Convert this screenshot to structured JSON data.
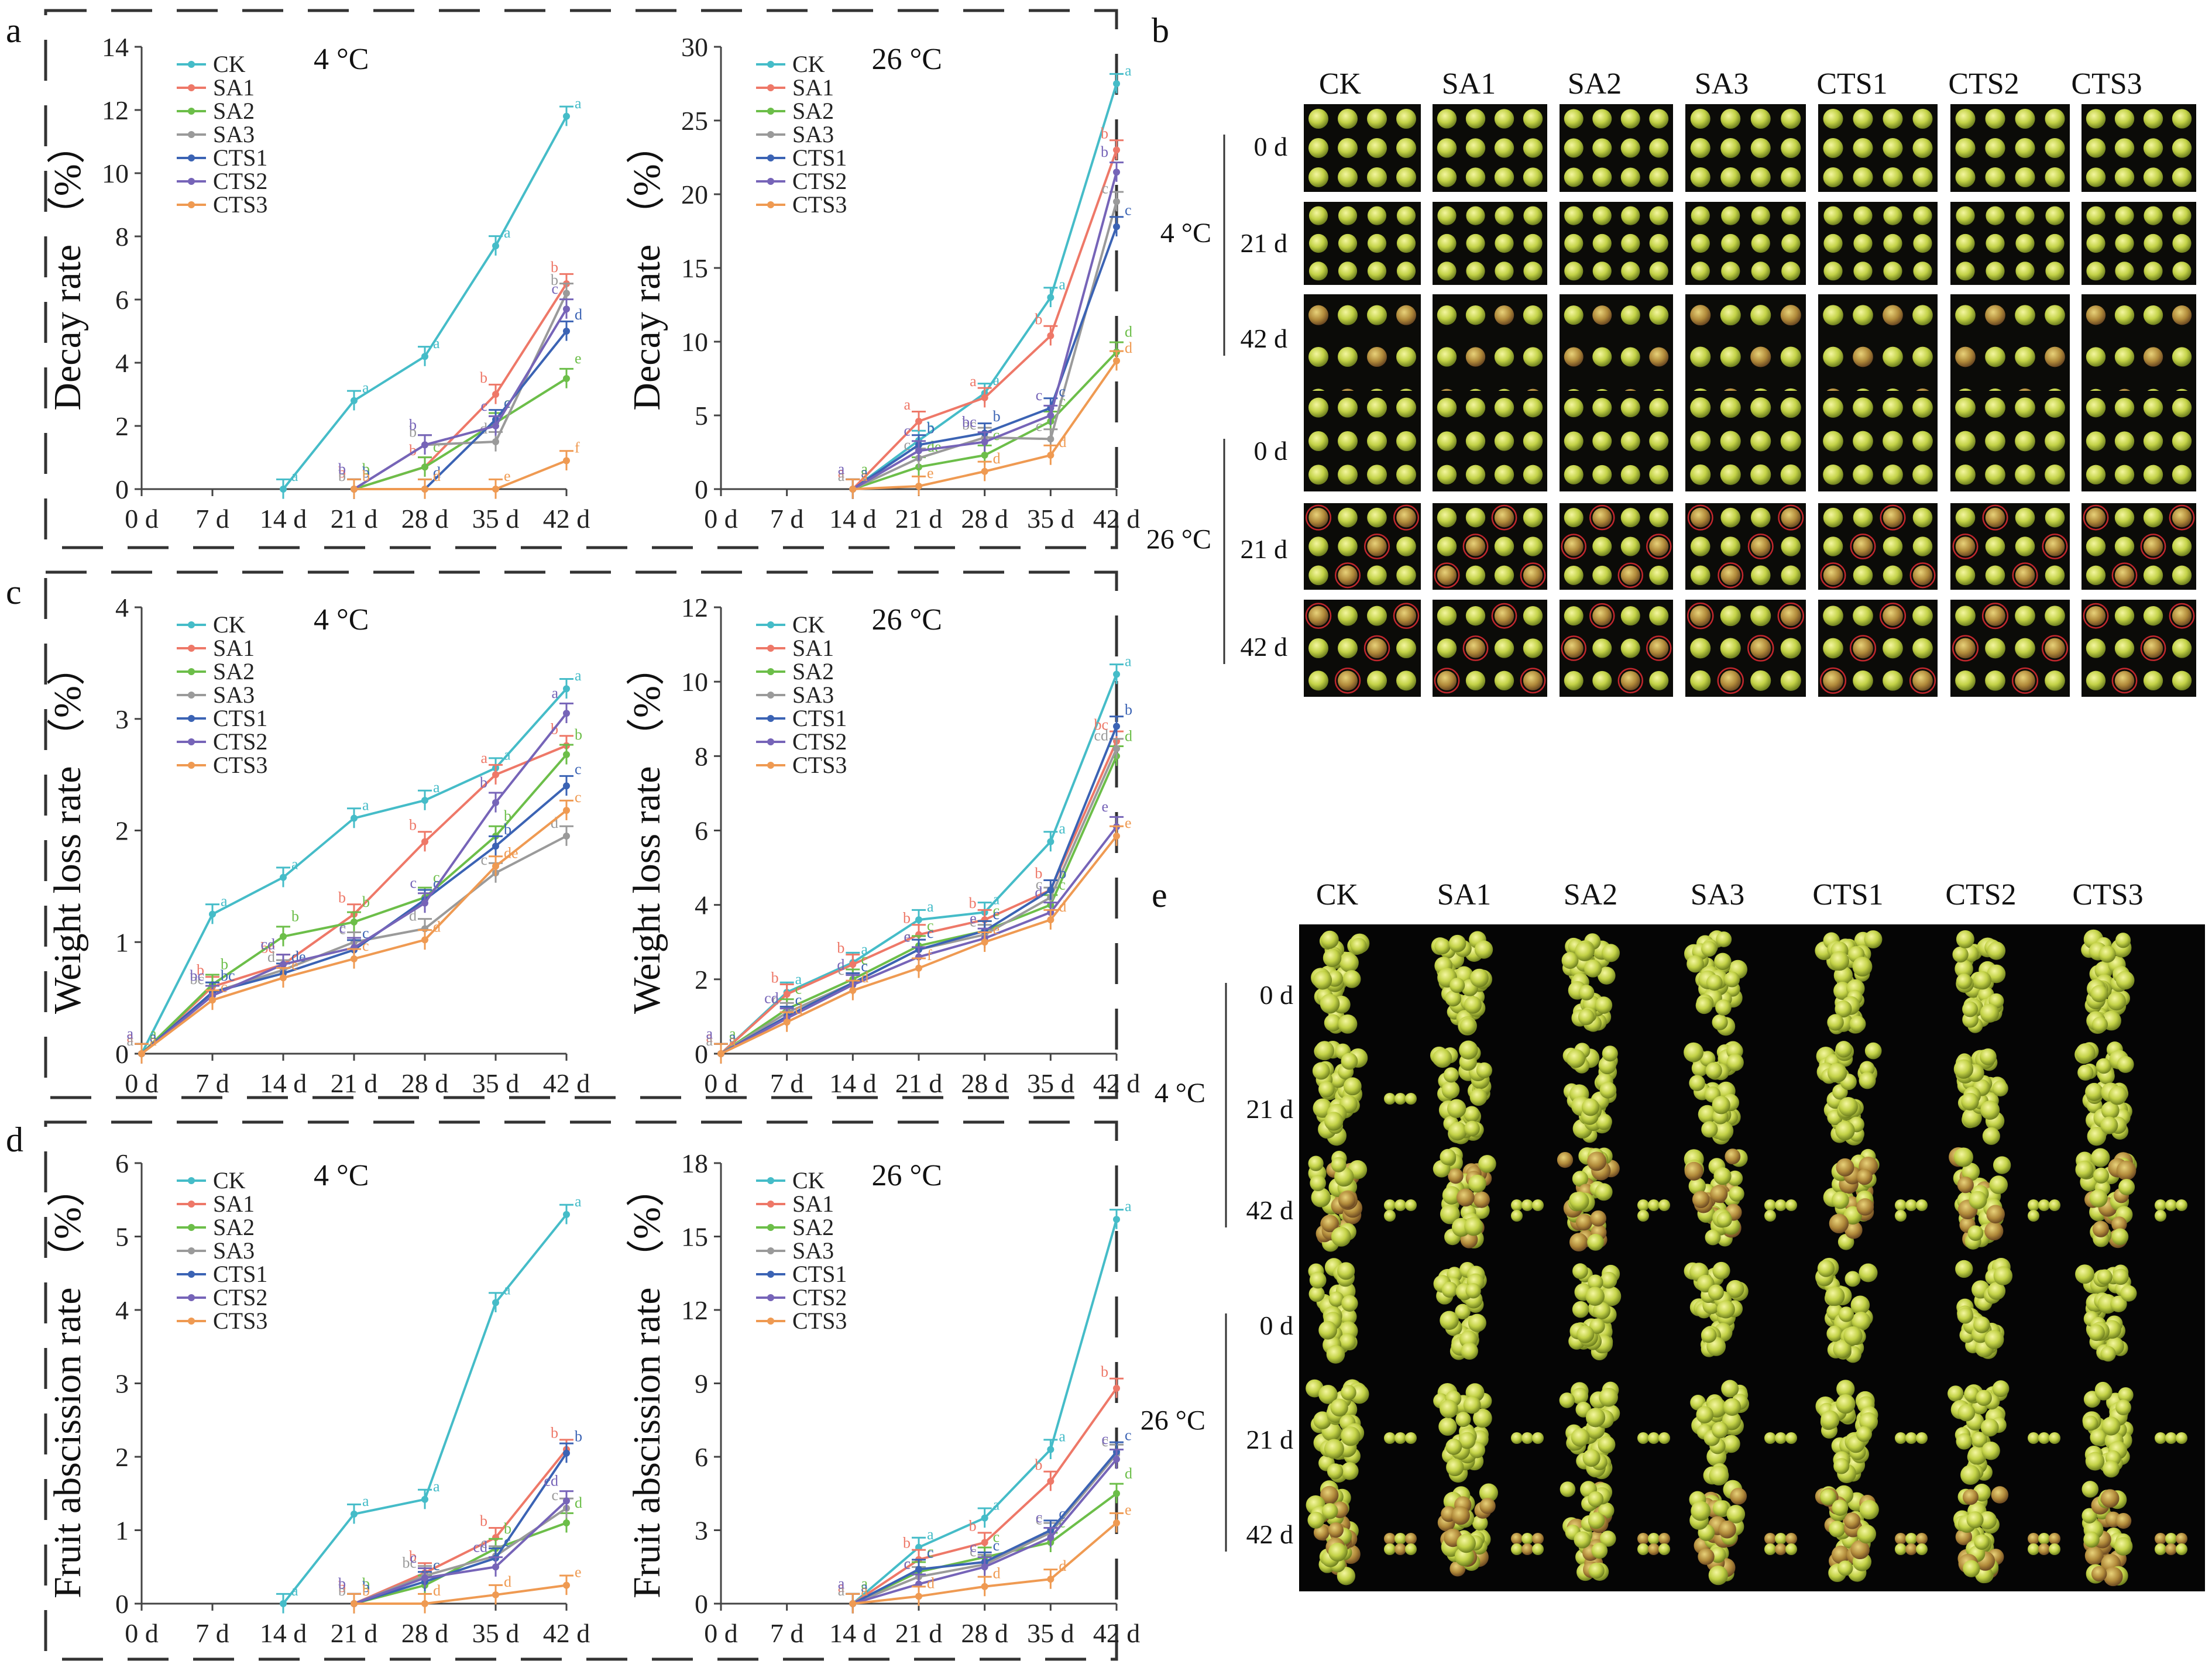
{
  "series_colors": {
    "CK": "#45bcc8",
    "SA1": "#ee7868",
    "SA2": "#6cbe49",
    "SA3": "#9a9a9a",
    "CTS1": "#3b63b4",
    "CTS2": "#7664b8",
    "CTS3": "#ef9a52"
  },
  "panel_letters": {
    "a": "a",
    "b": "b",
    "c": "c",
    "d": "d",
    "e": "e"
  },
  "chart_data": [
    {
      "id": "a-4C",
      "panel": "a",
      "type": "line",
      "title": "4 °C",
      "ylabel": "Decay rate （%）",
      "ylim": [
        0,
        14
      ],
      "yticks": [
        0,
        2,
        4,
        6,
        8,
        10,
        12,
        14
      ],
      "categories": [
        "0 d",
        "7 d",
        "14 d",
        "21 d",
        "28 d",
        "35 d",
        "42 d"
      ],
      "series": [
        {
          "name": "CK",
          "values": [
            null,
            null,
            0,
            2.8,
            4.2,
            7.7,
            11.8
          ],
          "sig": [
            "",
            "",
            "a",
            "a",
            "a",
            "a",
            "a"
          ]
        },
        {
          "name": "SA1",
          "values": [
            null,
            null,
            null,
            0,
            0.7,
            3.0,
            6.5
          ],
          "sig": [
            "",
            "",
            "",
            "b",
            "b",
            "b",
            "b"
          ]
        },
        {
          "name": "SA2",
          "values": [
            null,
            null,
            null,
            0,
            0.7,
            2.1,
            3.5
          ],
          "sig": [
            "",
            "",
            "",
            "b",
            "c",
            "c",
            "e"
          ]
        },
        {
          "name": "SA3",
          "values": [
            null,
            null,
            null,
            0,
            1.4,
            1.5,
            6.2
          ],
          "sig": [
            "",
            "",
            "",
            "b",
            "b",
            "d",
            "b"
          ]
        },
        {
          "name": "CTS1",
          "values": [
            null,
            null,
            null,
            0,
            0,
            2.2,
            5.0
          ],
          "sig": [
            "",
            "",
            "",
            "b",
            "d",
            "c",
            "d"
          ]
        },
        {
          "name": "CTS2",
          "values": [
            null,
            null,
            null,
            0,
            1.4,
            2.0,
            5.7
          ],
          "sig": [
            "",
            "",
            "",
            "b",
            "b",
            "c",
            "c"
          ]
        },
        {
          "name": "CTS3",
          "values": [
            null,
            null,
            null,
            0,
            0,
            0,
            0.9
          ],
          "sig": [
            "",
            "",
            "",
            "b",
            "d",
            "e",
            "f"
          ]
        }
      ]
    },
    {
      "id": "a-26C",
      "panel": "a",
      "type": "line",
      "title": "26 °C",
      "ylabel": "Decay rate （%）",
      "ylim": [
        0,
        30
      ],
      "yticks": [
        0,
        5,
        10,
        15,
        20,
        25,
        30
      ],
      "categories": [
        "0 d",
        "7 d",
        "14 d",
        "21 d",
        "28 d",
        "35 d",
        "42 d"
      ],
      "series": [
        {
          "name": "CK",
          "values": [
            null,
            null,
            0,
            3.3,
            6.5,
            13.0,
            27.5
          ],
          "sig": [
            "",
            "",
            "a",
            "b",
            "a",
            "a",
            "a"
          ]
        },
        {
          "name": "SA1",
          "values": [
            null,
            null,
            0,
            4.6,
            6.2,
            10.4,
            23.0
          ],
          "sig": [
            "",
            "",
            "a",
            "a",
            "a",
            "b",
            "b"
          ]
        },
        {
          "name": "SA2",
          "values": [
            null,
            null,
            0,
            1.5,
            2.3,
            4.6,
            9.3
          ],
          "sig": [
            "",
            "",
            "a",
            "de",
            "c",
            "c",
            "d"
          ]
        },
        {
          "name": "SA3",
          "values": [
            null,
            null,
            0,
            2.1,
            3.5,
            3.4,
            19.5
          ],
          "sig": [
            "",
            "",
            "a",
            "c",
            "bc",
            "c",
            "c"
          ]
        },
        {
          "name": "CTS1",
          "values": [
            null,
            null,
            0,
            3.0,
            3.8,
            5.5,
            17.8
          ],
          "sig": [
            "",
            "",
            "a",
            "b",
            "b",
            "c",
            "c"
          ]
        },
        {
          "name": "CTS2",
          "values": [
            null,
            null,
            0,
            2.6,
            3.2,
            5.0,
            21.5
          ],
          "sig": [
            "",
            "",
            "a",
            "c",
            "bc",
            "c",
            "b"
          ]
        },
        {
          "name": "CTS3",
          "values": [
            null,
            null,
            0,
            0.2,
            1.2,
            2.3,
            8.7
          ],
          "sig": [
            "",
            "",
            "a",
            "e",
            "d",
            "d",
            "d"
          ]
        }
      ]
    },
    {
      "id": "c-4C",
      "panel": "c",
      "type": "line",
      "title": "4 °C",
      "ylabel": "Weight loss rate （%）",
      "ylim": [
        0,
        4
      ],
      "yticks": [
        0,
        1,
        2,
        3,
        4
      ],
      "categories": [
        "0 d",
        "7 d",
        "14 d",
        "21 d",
        "28 d",
        "35 d",
        "42 d"
      ],
      "series": [
        {
          "name": "CK",
          "values": [
            0,
            1.25,
            1.58,
            2.11,
            2.27,
            2.56,
            3.27
          ],
          "sig": [
            "a",
            "a",
            "a",
            "a",
            "a",
            "a",
            "a"
          ]
        },
        {
          "name": "SA1",
          "values": [
            0,
            0.6,
            0.8,
            1.25,
            1.9,
            2.5,
            2.76
          ],
          "sig": [
            "a",
            "b",
            "bc",
            "b",
            "b",
            "a",
            "b"
          ]
        },
        {
          "name": "SA2",
          "values": [
            0,
            0.62,
            1.05,
            1.18,
            1.4,
            1.95,
            2.68
          ],
          "sig": [
            "a",
            "b",
            "b",
            "b",
            "c",
            "b",
            "b"
          ]
        },
        {
          "name": "SA3",
          "values": [
            0,
            0.55,
            0.75,
            1.0,
            1.12,
            1.62,
            1.95
          ],
          "sig": [
            "a",
            "bc",
            "d",
            "c",
            "d",
            "c",
            "d"
          ]
        },
        {
          "name": "CTS1",
          "values": [
            0,
            0.55,
            0.72,
            0.93,
            1.38,
            1.86,
            2.4
          ],
          "sig": [
            "a",
            "bc",
            "de",
            "c",
            "c",
            "b",
            "c"
          ]
        },
        {
          "name": "CTS2",
          "values": [
            0,
            0.52,
            0.8,
            0.95,
            1.35,
            2.25,
            3.05
          ],
          "sig": [
            "a",
            "bc",
            "cd",
            "c",
            "c",
            "b",
            "a"
          ]
        },
        {
          "name": "CTS3",
          "values": [
            0,
            0.48,
            0.68,
            0.85,
            1.02,
            1.68,
            2.18
          ],
          "sig": [
            "a",
            "c",
            "e",
            "c",
            "d",
            "de",
            "c"
          ]
        }
      ]
    },
    {
      "id": "c-26C",
      "panel": "c",
      "type": "line",
      "title": "26 °C",
      "ylabel": "Weight loss rate （%）",
      "ylim": [
        0,
        12
      ],
      "yticks": [
        0,
        2,
        4,
        6,
        8,
        10,
        12
      ],
      "categories": [
        "0 d",
        "7 d",
        "14 d",
        "21 d",
        "28 d",
        "35 d",
        "42 d"
      ],
      "series": [
        {
          "name": "CK",
          "values": [
            0,
            1.65,
            2.45,
            3.6,
            3.8,
            5.7,
            10.2
          ],
          "sig": [
            "a",
            "a",
            "a",
            "a",
            "a",
            "a",
            "a"
          ]
        },
        {
          "name": "SA1",
          "values": [
            0,
            1.6,
            2.4,
            3.2,
            3.6,
            4.4,
            8.4
          ],
          "sig": [
            "a",
            "b",
            "b",
            "b",
            "b",
            "b",
            "bc"
          ]
        },
        {
          "name": "SA2",
          "values": [
            0,
            1.2,
            2.0,
            2.9,
            3.3,
            4.0,
            8.0
          ],
          "sig": [
            "a",
            "c",
            "c",
            "c",
            "c",
            "c",
            "d"
          ]
        },
        {
          "name": "SA3",
          "values": [
            0,
            1.1,
            1.9,
            2.8,
            3.2,
            4.2,
            8.2
          ],
          "sig": [
            "a",
            "c",
            "c",
            "c",
            "c",
            "c",
            "cd"
          ]
        },
        {
          "name": "CTS1",
          "values": [
            0,
            1.0,
            1.9,
            2.8,
            3.3,
            4.4,
            8.8
          ],
          "sig": [
            "a",
            "c",
            "c",
            "c",
            "c",
            "b",
            "b"
          ]
        },
        {
          "name": "CTS2",
          "values": [
            0,
            0.95,
            1.85,
            2.6,
            3.1,
            3.8,
            6.1
          ],
          "sig": [
            "a",
            "cd",
            "d",
            "e",
            "e",
            "d",
            "e"
          ]
        },
        {
          "name": "CTS3",
          "values": [
            0,
            0.85,
            1.7,
            2.3,
            3.0,
            3.6,
            5.85
          ],
          "sig": [
            "a",
            "d",
            "d",
            "f",
            "e",
            "d",
            "e"
          ]
        }
      ]
    },
    {
      "id": "d-4C",
      "panel": "d",
      "type": "line",
      "title": "4 °C",
      "ylabel": "Fruit abscission rate （%）",
      "ylim": [
        0,
        6
      ],
      "yticks": [
        0,
        1,
        2,
        3,
        4,
        5,
        6
      ],
      "categories": [
        "0 d",
        "7 d",
        "14 d",
        "21 d",
        "28 d",
        "35 d",
        "42 d"
      ],
      "series": [
        {
          "name": "CK",
          "values": [
            null,
            null,
            0,
            1.22,
            1.42,
            4.1,
            5.3
          ],
          "sig": [
            "",
            "",
            "a",
            "a",
            "a",
            "a",
            "a"
          ]
        },
        {
          "name": "SA1",
          "values": [
            null,
            null,
            null,
            0,
            0.42,
            0.9,
            2.1
          ],
          "sig": [
            "",
            "",
            "",
            "b",
            "b",
            "b",
            "b"
          ]
        },
        {
          "name": "SA2",
          "values": [
            null,
            null,
            null,
            0,
            0.25,
            0.75,
            1.1
          ],
          "sig": [
            "",
            "",
            "",
            "b",
            "c",
            "b",
            "d"
          ]
        },
        {
          "name": "SA3",
          "values": [
            null,
            null,
            null,
            0,
            0.38,
            0.65,
            1.3
          ],
          "sig": [
            "",
            "",
            "",
            "b",
            "bc",
            "c",
            "c"
          ]
        },
        {
          "name": "CTS1",
          "values": [
            null,
            null,
            null,
            0,
            0.3,
            0.62,
            2.05
          ],
          "sig": [
            "",
            "",
            "",
            "b",
            "c",
            "c",
            "b"
          ]
        },
        {
          "name": "CTS2",
          "values": [
            null,
            null,
            null,
            0,
            0.35,
            0.5,
            1.4
          ],
          "sig": [
            "",
            "",
            "",
            "b",
            "c",
            "cd",
            "cd"
          ]
        },
        {
          "name": "CTS3",
          "values": [
            null,
            null,
            null,
            0,
            0,
            0.12,
            0.25
          ],
          "sig": [
            "",
            "",
            "",
            "b",
            "d",
            "d",
            "e"
          ]
        }
      ]
    },
    {
      "id": "d-26C",
      "panel": "d",
      "type": "line",
      "title": "26 °C",
      "ylabel": "Fruit abscission rate （%）",
      "ylim": [
        0,
        18
      ],
      "yticks": [
        0,
        3,
        6,
        9,
        12,
        15,
        18
      ],
      "categories": [
        "0 d",
        "7 d",
        "14 d",
        "21 d",
        "28 d",
        "35 d",
        "42 d"
      ],
      "series": [
        {
          "name": "CK",
          "values": [
            null,
            null,
            0,
            2.3,
            3.5,
            6.3,
            15.7
          ],
          "sig": [
            "",
            "",
            "a",
            "a",
            "a",
            "a",
            "a"
          ]
        },
        {
          "name": "SA1",
          "values": [
            null,
            null,
            0,
            1.8,
            2.5,
            5.0,
            8.8
          ],
          "sig": [
            "",
            "",
            "a",
            "b",
            "b",
            "b",
            "b"
          ]
        },
        {
          "name": "SA2",
          "values": [
            null,
            null,
            0,
            1.3,
            1.9,
            2.5,
            4.5
          ],
          "sig": [
            "",
            "",
            "a",
            "c",
            "c",
            "c",
            "d"
          ]
        },
        {
          "name": "SA3",
          "values": [
            null,
            null,
            0,
            1.1,
            1.6,
            2.9,
            6.1
          ],
          "sig": [
            "",
            "",
            "a",
            "c",
            "c",
            "c",
            "c"
          ]
        },
        {
          "name": "CTS1",
          "values": [
            null,
            null,
            0,
            1.4,
            1.7,
            3.0,
            6.2
          ],
          "sig": [
            "",
            "",
            "a",
            "c",
            "c",
            "c",
            "c"
          ]
        },
        {
          "name": "CTS2",
          "values": [
            null,
            null,
            0,
            0.8,
            1.5,
            2.7,
            5.9
          ],
          "sig": [
            "",
            "",
            "a",
            "c",
            "c",
            "c",
            "c"
          ]
        },
        {
          "name": "CTS3",
          "values": [
            null,
            null,
            0,
            0.3,
            0.7,
            1.0,
            3.3
          ],
          "sig": [
            "",
            "",
            "a",
            "d",
            "d",
            "d",
            "e"
          ]
        }
      ]
    }
  ],
  "photo_panels": {
    "b": {
      "columns": [
        "CK",
        "SA1",
        "SA2",
        "SA3",
        "CTS1",
        "CTS2",
        "CTS3"
      ],
      "rows": [
        "0 d",
        "21 d",
        "42 d",
        "0 d",
        "21 d",
        "42 d"
      ],
      "temps": [
        "4 °C",
        "26 °C"
      ]
    },
    "e": {
      "columns": [
        "CK",
        "SA1",
        "SA2",
        "SA3",
        "CTS1",
        "CTS2",
        "CTS3"
      ],
      "rows": [
        "0 d",
        "21 d",
        "42 d",
        "0 d",
        "21 d",
        "42 d"
      ],
      "temps": [
        "4 °C",
        "26 °C"
      ]
    }
  }
}
